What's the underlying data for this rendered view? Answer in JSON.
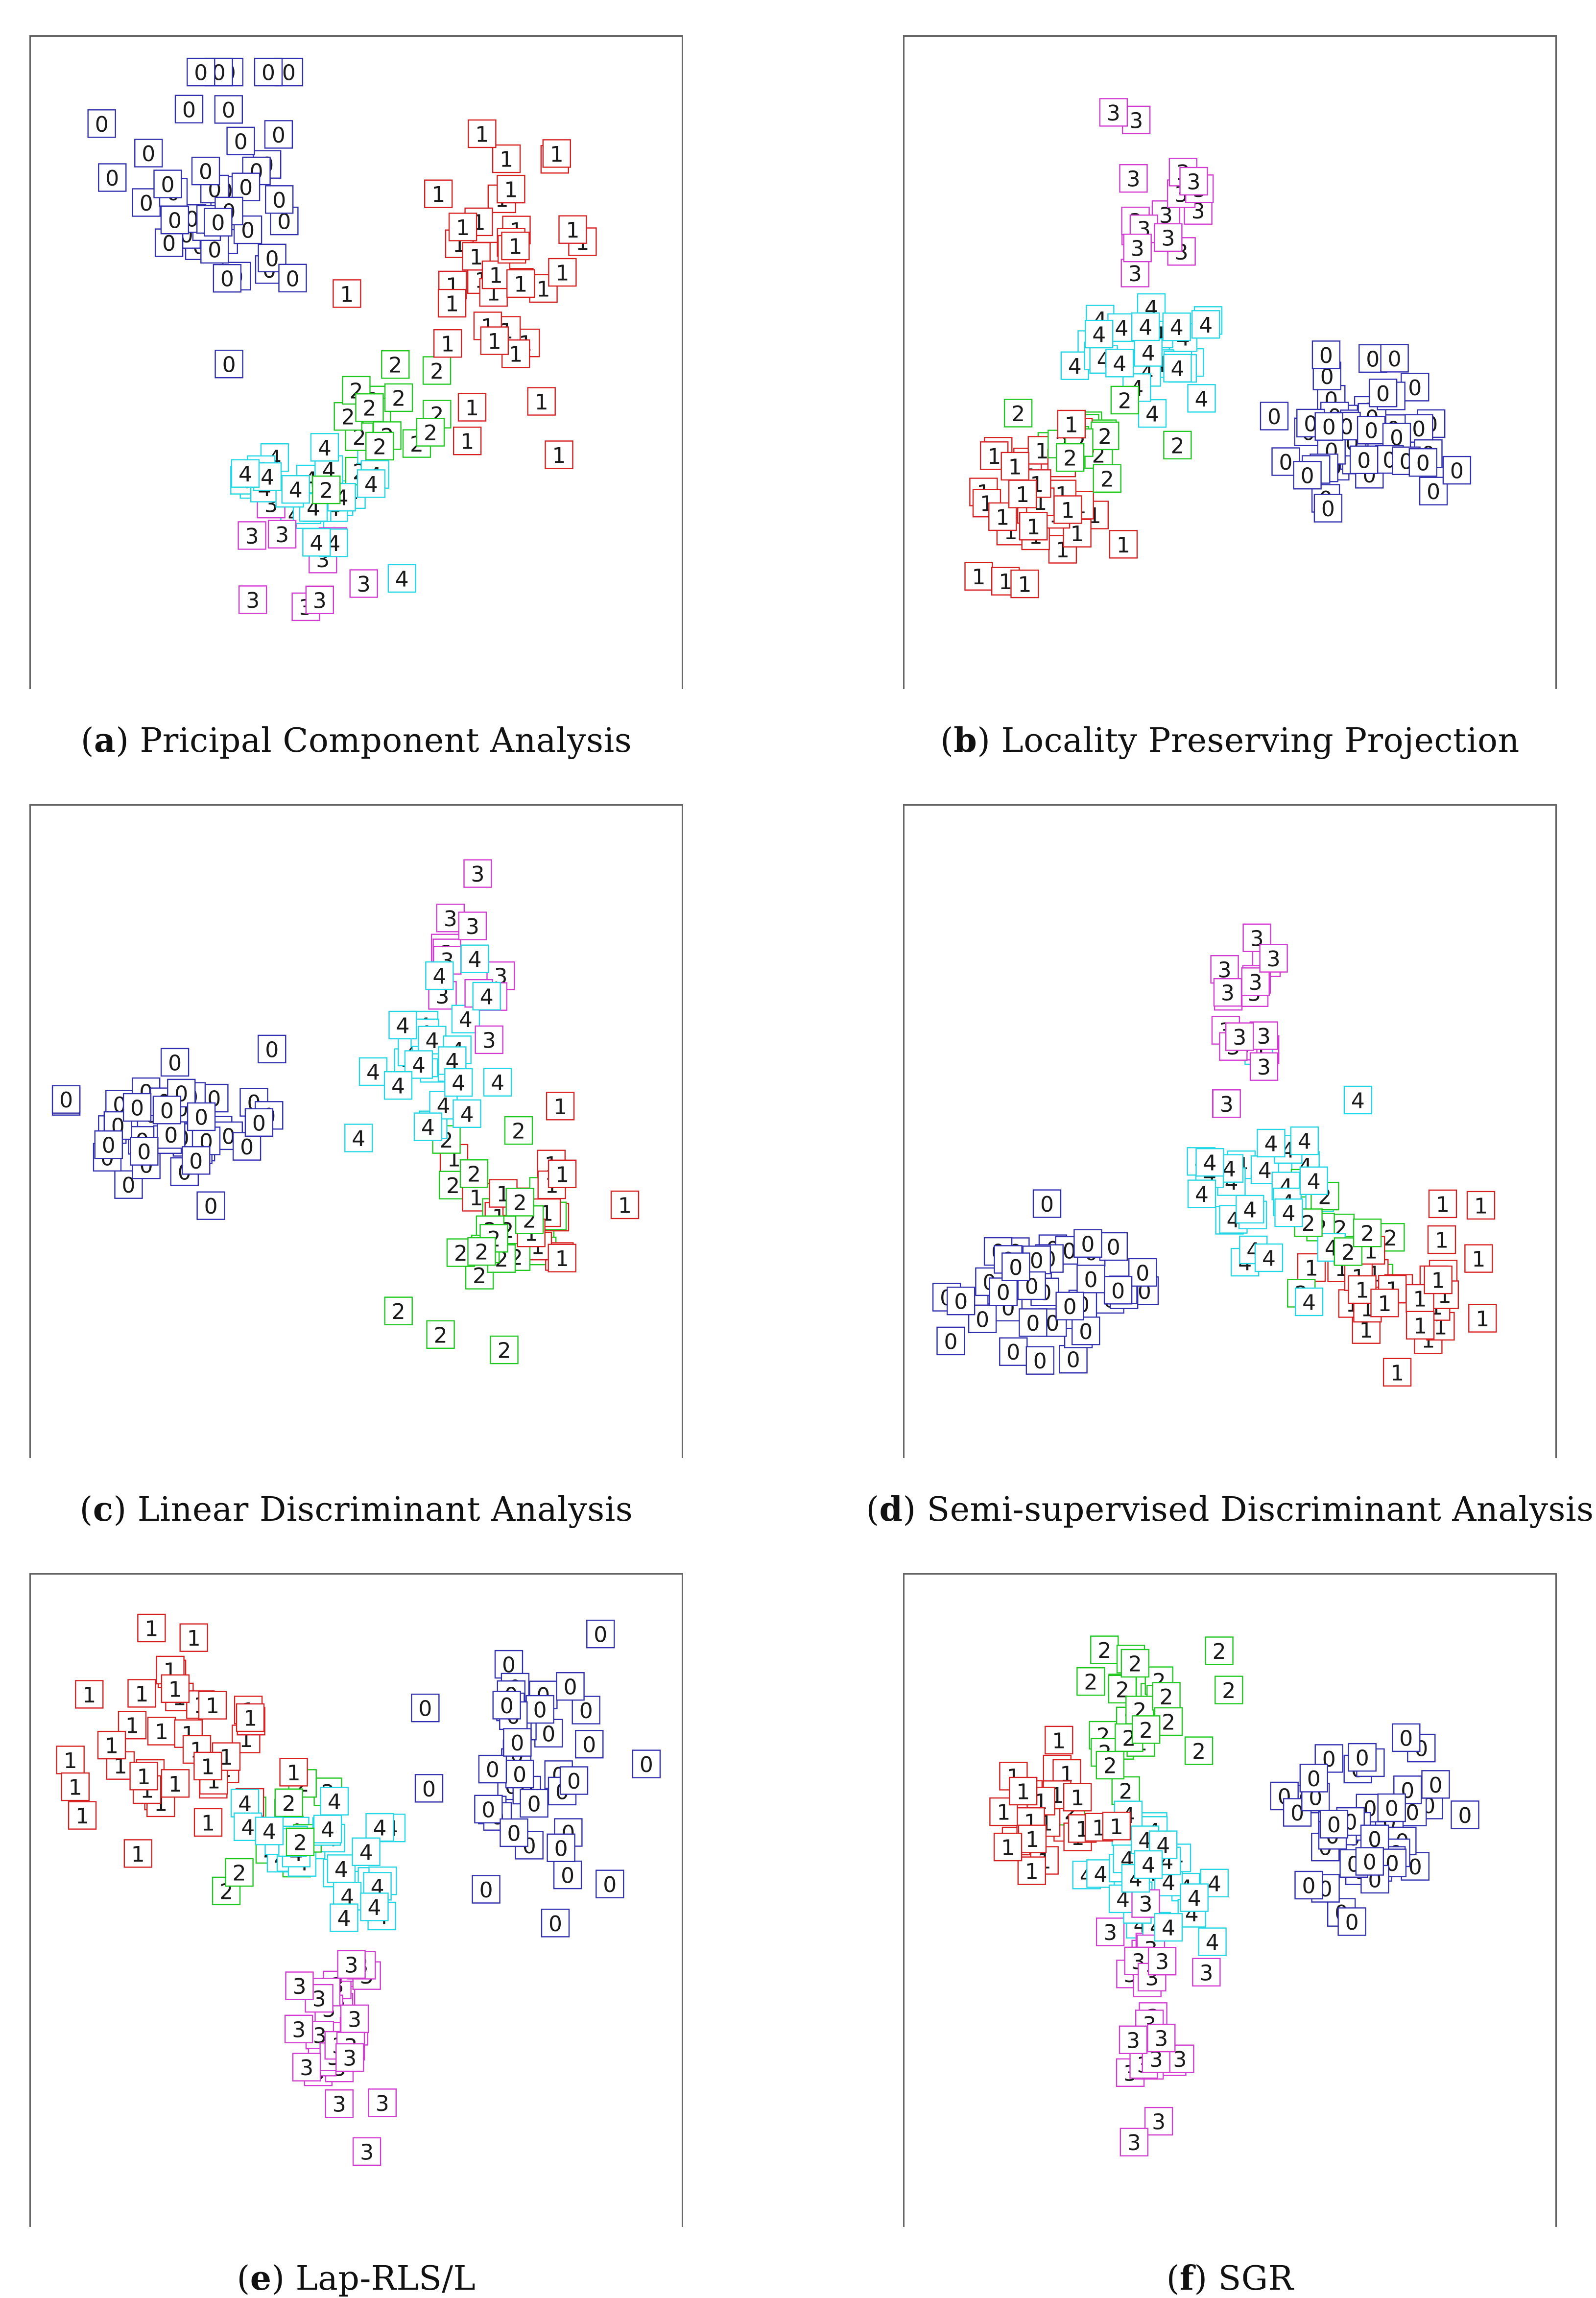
{
  "figure": {
    "classes": [
      {
        "digit": "0",
        "color": "#2f2fb0"
      },
      {
        "digit": "1",
        "color": "#d81f1f"
      },
      {
        "digit": "2",
        "color": "#1ec81e"
      },
      {
        "digit": "3",
        "color": "#d23ad2"
      },
      {
        "digit": "4",
        "color": "#22d6e6"
      }
    ]
  },
  "chart_data": [
    {
      "type": "scatter",
      "id": "a",
      "caption_letter": "a",
      "caption_text": " Pricipal Component Analysis",
      "xlim": [
        0,
        100
      ],
      "ylim": [
        0,
        100
      ],
      "clusters": [
        {
          "digit": "0",
          "cx": 25,
          "cy": 75,
          "sx": 9,
          "sy": 12,
          "n": 42
        },
        {
          "digit": "1",
          "cx": 75,
          "cy": 66,
          "sx": 9,
          "sy": 14,
          "n": 38
        },
        {
          "digit": "2",
          "cx": 55,
          "cy": 40,
          "sx": 5,
          "sy": 6,
          "n": 16
        },
        {
          "digit": "3",
          "cx": 39,
          "cy": 15,
          "sx": 6,
          "sy": 8,
          "n": 9
        },
        {
          "digit": "4",
          "cx": 43,
          "cy": 28,
          "sx": 6,
          "sy": 6,
          "n": 28
        }
      ]
    },
    {
      "type": "scatter",
      "id": "b",
      "caption_letter": "b",
      "caption_text": " Locality Preserving Projection",
      "xlim": [
        0,
        100
      ],
      "ylim": [
        0,
        100
      ],
      "clusters": [
        {
          "digit": "0",
          "cx": 72,
          "cy": 38,
          "sx": 8,
          "sy": 6,
          "n": 42
        },
        {
          "digit": "1",
          "cx": 16,
          "cy": 24,
          "sx": 6,
          "sy": 9,
          "n": 30
        },
        {
          "digit": "2",
          "cx": 25,
          "cy": 38,
          "sx": 6,
          "sy": 5,
          "n": 14
        },
        {
          "digit": "3",
          "cx": 38,
          "cy": 79,
          "sx": 4,
          "sy": 7,
          "n": 16
        },
        {
          "digit": "4",
          "cx": 36,
          "cy": 52,
          "sx": 6,
          "sy": 5,
          "n": 26
        }
      ]
    },
    {
      "type": "scatter",
      "id": "c",
      "caption_letter": "c",
      "caption_text": " Linear Discriminant Analysis",
      "xlim": [
        0,
        100
      ],
      "ylim": [
        0,
        100
      ],
      "clusters": [
        {
          "digit": "0",
          "cx": 22,
          "cy": 50,
          "sx": 9,
          "sy": 6,
          "n": 42
        },
        {
          "digit": "1",
          "cx": 80,
          "cy": 38,
          "sx": 6,
          "sy": 5,
          "n": 18
        },
        {
          "digit": "2",
          "cx": 73,
          "cy": 32,
          "sx": 6,
          "sy": 8,
          "n": 24
        },
        {
          "digit": "3",
          "cx": 67,
          "cy": 77,
          "sx": 5,
          "sy": 7,
          "n": 12
        },
        {
          "digit": "4",
          "cx": 63,
          "cy": 62,
          "sx": 6,
          "sy": 7,
          "n": 26
        }
      ]
    },
    {
      "type": "scatter",
      "id": "d",
      "caption_letter": "d",
      "caption_text": " Semi-supervised Discriminant Analysis",
      "xlim": [
        0,
        100
      ],
      "ylim": [
        0,
        100
      ],
      "clusters": [
        {
          "digit": "0",
          "cx": 20,
          "cy": 24,
          "sx": 9,
          "sy": 7,
          "n": 42
        },
        {
          "digit": "1",
          "cx": 80,
          "cy": 22,
          "sx": 6,
          "sy": 6,
          "n": 28
        },
        {
          "digit": "2",
          "cx": 67,
          "cy": 32,
          "sx": 5,
          "sy": 5,
          "n": 12
        },
        {
          "digit": "3",
          "cx": 53,
          "cy": 70,
          "sx": 4,
          "sy": 9,
          "n": 18
        },
        {
          "digit": "4",
          "cx": 56,
          "cy": 40,
          "sx": 6,
          "sy": 7,
          "n": 28
        }
      ]
    },
    {
      "type": "scatter",
      "id": "e",
      "caption_letter": "e",
      "caption_text": " Lap-RLS/L",
      "xlim": [
        0,
        100
      ],
      "ylim": [
        0,
        100
      ],
      "clusters": [
        {
          "digit": "0",
          "cx": 80,
          "cy": 73,
          "sx": 9,
          "sy": 9,
          "n": 40
        },
        {
          "digit": "1",
          "cx": 18,
          "cy": 78,
          "sx": 9,
          "sy": 8,
          "n": 38
        },
        {
          "digit": "2",
          "cx": 38,
          "cy": 62,
          "sx": 6,
          "sy": 5,
          "n": 14
        },
        {
          "digit": "3",
          "cx": 47,
          "cy": 28,
          "sx": 4,
          "sy": 9,
          "n": 26
        },
        {
          "digit": "4",
          "cx": 45,
          "cy": 58,
          "sx": 7,
          "sy": 5,
          "n": 30
        }
      ]
    },
    {
      "type": "scatter",
      "id": "f",
      "caption_letter": "f",
      "caption_text": " SGR",
      "xlim": [
        0,
        100
      ],
      "ylim": [
        0,
        100
      ],
      "clusters": [
        {
          "digit": "0",
          "cx": 72,
          "cy": 62,
          "sx": 8,
          "sy": 6,
          "n": 42
        },
        {
          "digit": "1",
          "cx": 18,
          "cy": 64,
          "sx": 6,
          "sy": 6,
          "n": 22
        },
        {
          "digit": "2",
          "cx": 35,
          "cy": 80,
          "sx": 6,
          "sy": 7,
          "n": 26
        },
        {
          "digit": "3",
          "cx": 36,
          "cy": 30,
          "sx": 4,
          "sy": 10,
          "n": 24
        },
        {
          "digit": "4",
          "cx": 35,
          "cy": 54,
          "sx": 5,
          "sy": 5,
          "n": 30
        }
      ]
    }
  ]
}
